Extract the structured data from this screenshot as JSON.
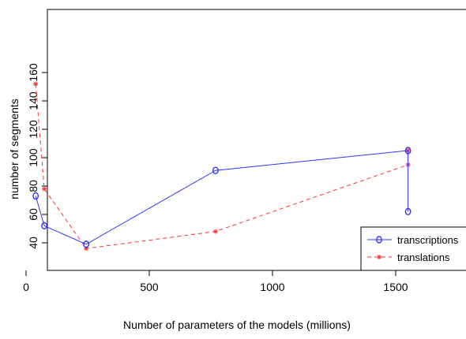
{
  "chart_data": {
    "type": "line",
    "title": "",
    "xlabel": "Number of parameters of the models (millions)",
    "ylabel": "number of segments",
    "xlim": [
      0,
      1600
    ],
    "ylim": [
      25,
      165
    ],
    "x_ticks": [
      0,
      500,
      1000,
      1500
    ],
    "x_tick_labels": [
      "0",
      "500",
      "1000",
      "1500"
    ],
    "y_ticks": [
      40,
      60,
      80,
      100,
      120,
      140,
      160
    ],
    "y_tick_labels": [
      "40",
      "60",
      "80",
      "100",
      "120",
      "140",
      "160"
    ],
    "grid": false,
    "legend_position": "bottom-right",
    "series": [
      {
        "name": "transcriptions",
        "color": "#3333ff",
        "line_style": "solid",
        "marker": "circle",
        "x": [
          39,
          74,
          244,
          769,
          1550,
          1550
        ],
        "y": [
          73,
          52,
          39,
          91,
          105,
          62
        ]
      },
      {
        "name": "translations",
        "color": "#ff3333",
        "line_style": "dashed",
        "marker": "star",
        "x": [
          39,
          74,
          244,
          769,
          1550,
          1550
        ],
        "y": [
          152,
          78,
          36,
          48,
          95,
          105
        ]
      }
    ]
  }
}
